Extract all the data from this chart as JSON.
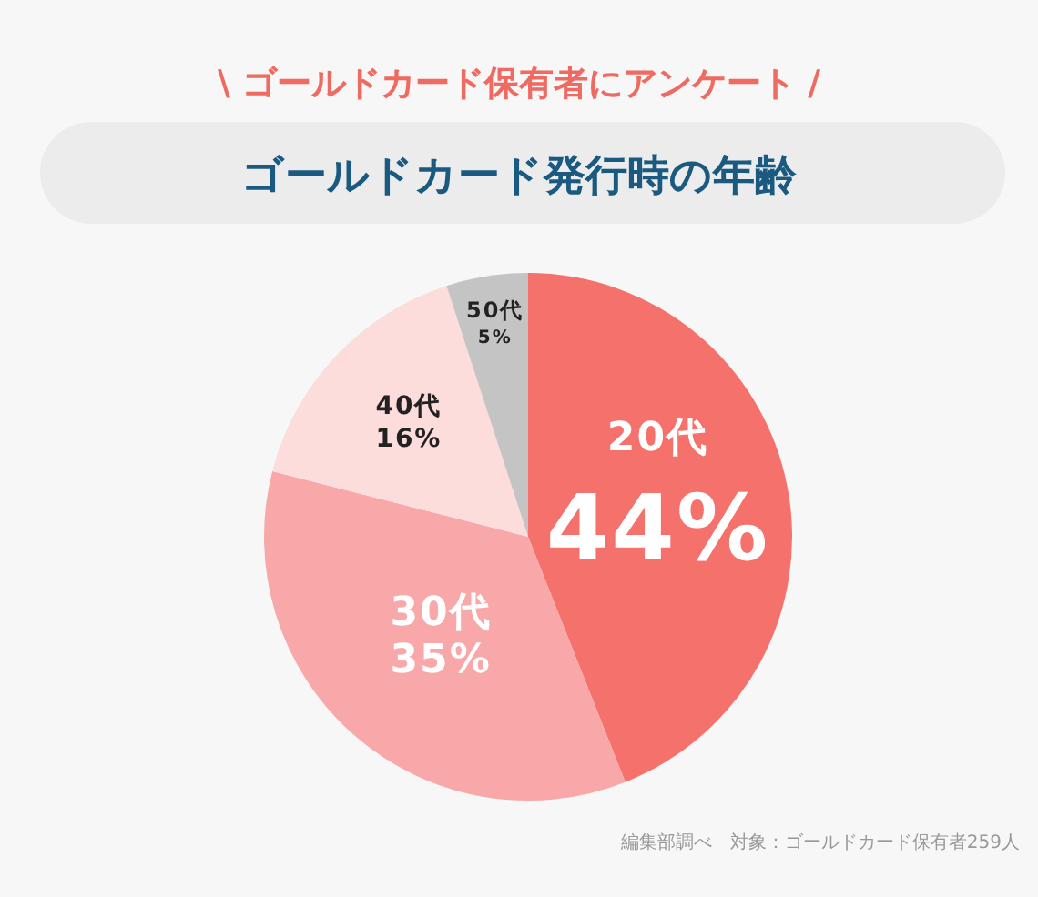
{
  "chart_data": {
    "type": "pie",
    "subtitle": "\\ ゴールドカード保有者にアンケート /",
    "title": "ゴールドカード発行時の年齢",
    "categories": [
      "20代",
      "30代",
      "40代",
      "50代"
    ],
    "values": [
      44,
      35,
      16,
      5
    ],
    "colors": [
      "#f5716b",
      "#f8a8a8",
      "#fddcdc",
      "#c4c4c4"
    ],
    "value_labels": [
      "44%",
      "35%",
      "16%",
      "5%"
    ],
    "annotations": [
      "編集部調べ　対象：ゴールドカード保有者259人"
    ]
  }
}
